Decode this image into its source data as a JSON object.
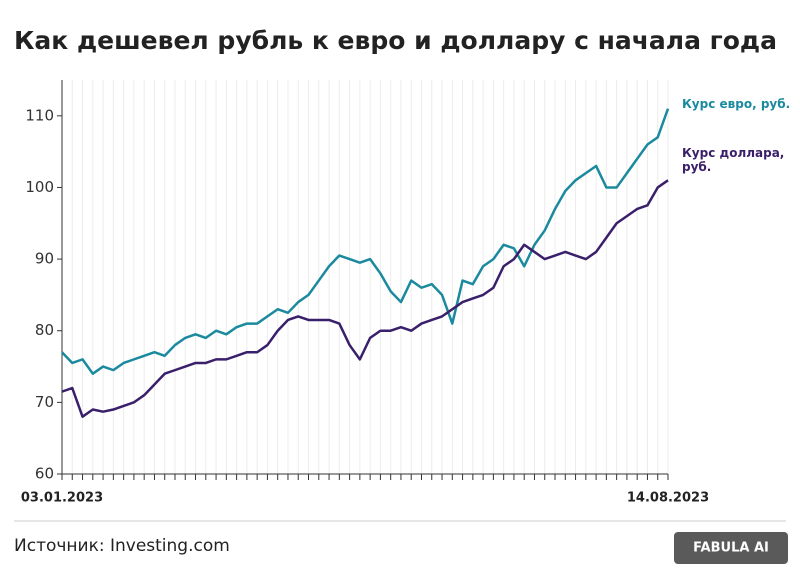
{
  "chart_data": {
    "type": "line",
    "title": "Как дешевел рубль к евро и доллару с начала года",
    "source": "Источник: Investing.com",
    "logo": "FABULA AI",
    "categories": [
      "03.01.2023",
      null,
      null,
      null,
      null,
      null,
      null,
      null,
      null,
      null,
      null,
      null,
      null,
      null,
      null,
      null,
      null,
      null,
      null,
      null,
      null,
      null,
      null,
      null,
      null,
      null,
      null,
      null,
      null,
      null,
      null,
      null,
      null,
      null,
      null,
      null,
      null,
      null,
      null,
      null,
      null,
      null,
      null,
      null,
      null,
      null,
      null,
      null,
      null,
      null,
      null,
      null,
      null,
      null,
      null,
      null,
      null,
      null,
      null,
      "14.08.2023"
    ],
    "series": [
      {
        "name": "Курс евро, руб.",
        "color": "#1b8a9e",
        "values": [
          77,
          75.5,
          76,
          74,
          75,
          74.5,
          75.5,
          76,
          76.5,
          77,
          76.5,
          78,
          79,
          79.5,
          79,
          80,
          79.5,
          80.5,
          81,
          81,
          82,
          83,
          82.5,
          84,
          85,
          87,
          89,
          90.5,
          90,
          89.5,
          90,
          88,
          85.5,
          84,
          87,
          86,
          86.5,
          85,
          81,
          87,
          86.5,
          89,
          90,
          92,
          91.5,
          89,
          92,
          94,
          97,
          99.5,
          101,
          102,
          103,
          100,
          100,
          102,
          104,
          106,
          107,
          111
        ]
      },
      {
        "name": "Курс доллара, руб.",
        "color": "#3a1f6b",
        "values": [
          71.5,
          72,
          68,
          69,
          68.7,
          69,
          69.5,
          70,
          71,
          72.5,
          74,
          74.5,
          75,
          75.5,
          75.5,
          76,
          76,
          76.5,
          77,
          77,
          78,
          80,
          81.5,
          82,
          81.5,
          81.5,
          81.5,
          81,
          78,
          76,
          79,
          80,
          80,
          80.5,
          80,
          81,
          81.5,
          82,
          83,
          84,
          84.5,
          85,
          86,
          89,
          90,
          92,
          91,
          90,
          90.5,
          91,
          90.5,
          90,
          91,
          93,
          95,
          96,
          97,
          97.5,
          100,
          101
        ]
      }
    ],
    "ylim": [
      60,
      115
    ],
    "yticks": [
      60,
      70,
      80,
      90,
      100,
      110
    ],
    "grid": true
  }
}
